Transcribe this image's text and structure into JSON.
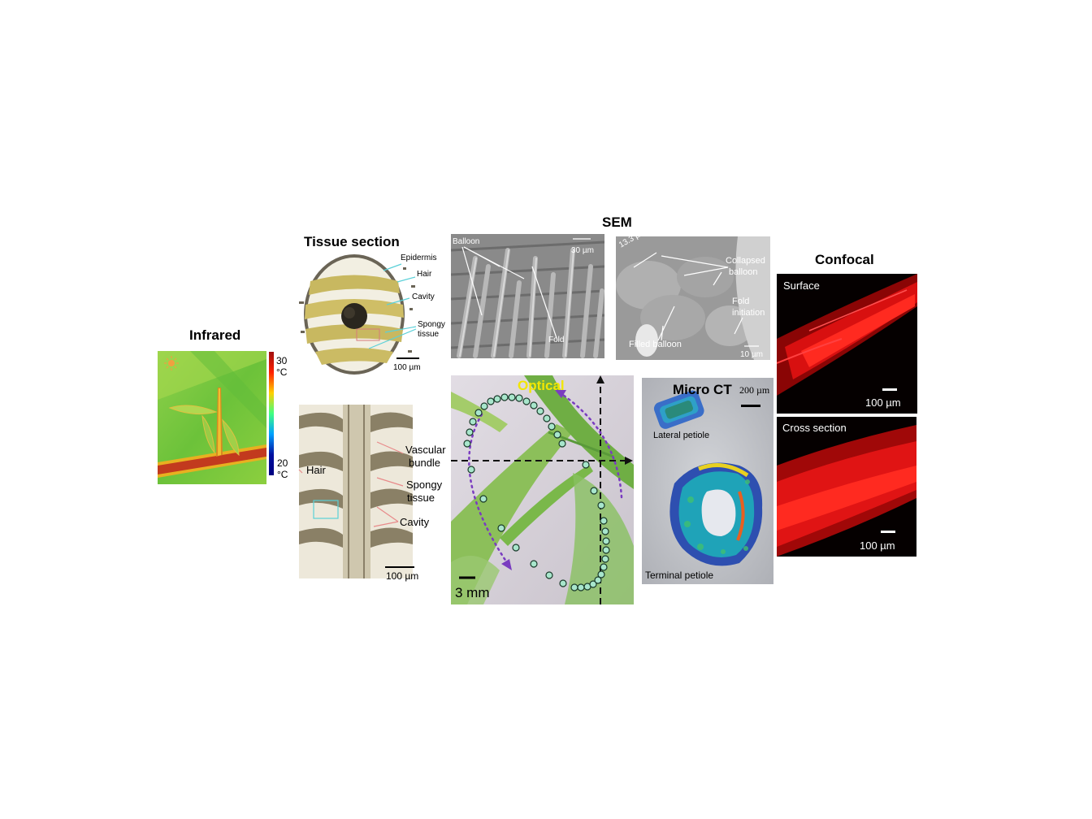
{
  "infrared": {
    "title": "Infrared",
    "colorbar": {
      "max": "30",
      "max_unit": "°C",
      "min": "20",
      "min_unit": "°C"
    },
    "icon": "sun-icon"
  },
  "tissue_section": {
    "title": "Tissue section",
    "top": {
      "labels": [
        "Epidermis",
        "Hair",
        "Cavity",
        "Spongy",
        "tissue"
      ],
      "scale": "100 µm"
    },
    "bottom": {
      "labels": [
        "Hair",
        "Vascular",
        "bundle",
        "Spongy",
        "tissue",
        "Cavity"
      ],
      "scale": "100 µm"
    }
  },
  "sem": {
    "title": "SEM",
    "left": {
      "balloon": "Balloon",
      "fold": "Fold",
      "scale": "30 µm"
    },
    "right": {
      "dim": "13.3 µm",
      "collapsed_1": "Collapsed",
      "collapsed_2": "balloon",
      "fold_1": "Fold",
      "fold_2": "initiation",
      "filled": "Filled balloon",
      "scale": "10 µm"
    }
  },
  "optical": {
    "title": "Optical",
    "scale": "3 mm"
  },
  "micro_ct": {
    "title": "Micro CT",
    "scale": "200 µm",
    "lateral": "Lateral petiole",
    "terminal": "Terminal petiole"
  },
  "confocal": {
    "title": "Confocal",
    "surface": {
      "label": "Surface",
      "scale": "100 µm"
    },
    "cross": {
      "label": "Cross section",
      "scale": "100 µm"
    }
  },
  "colors": {
    "optical_title": "#f2e600",
    "marker_fill": "#a8e6cc",
    "trajectory": "#7a3cc0",
    "confocal_red": "#ff1010"
  }
}
